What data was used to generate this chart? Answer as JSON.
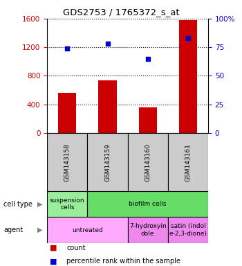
{
  "title": "GDS2753 / 1765372_s_at",
  "samples": [
    "GSM143158",
    "GSM143159",
    "GSM143160",
    "GSM143161"
  ],
  "counts": [
    560,
    740,
    360,
    1580
  ],
  "percentile_ranks": [
    74,
    78,
    65,
    83
  ],
  "ylim_left": [
    0,
    1600
  ],
  "ylim_right": [
    0,
    100
  ],
  "yticks_left": [
    0,
    400,
    800,
    1200,
    1600
  ],
  "yticks_right": [
    0,
    25,
    50,
    75,
    100
  ],
  "bar_color": "#cc0000",
  "dot_color": "#0000cc",
  "bar_width": 0.45,
  "cell_type_row": {
    "label": "cell type",
    "cells": [
      {
        "span": [
          0,
          1
        ],
        "text": "suspension\ncells",
        "color": "#99ee99"
      },
      {
        "span": [
          1,
          4
        ],
        "text": "biofilm cells",
        "color": "#66dd66"
      }
    ]
  },
  "agent_row": {
    "label": "agent",
    "cells": [
      {
        "span": [
          0,
          2
        ],
        "text": "untreated",
        "color": "#ffaaff"
      },
      {
        "span": [
          2,
          3
        ],
        "text": "7-hydroxyin\ndole",
        "color": "#ee88ee"
      },
      {
        "span": [
          3,
          4
        ],
        "text": "satin (indol\ne-2,3-dione)",
        "color": "#ee88ee"
      }
    ]
  },
  "legend_items": [
    {
      "color": "#cc0000",
      "label": "count"
    },
    {
      "color": "#0000cc",
      "label": "percentile rank within the sample"
    }
  ],
  "left_axis_color": "#cc0000",
  "right_axis_color": "#0000cc",
  "bg_color": "#ffffff",
  "plot_bg_color": "#ffffff",
  "tick_label_color_left": "#cc0000",
  "tick_label_color_right": "#0000cc",
  "sample_box_color": "#cccccc"
}
